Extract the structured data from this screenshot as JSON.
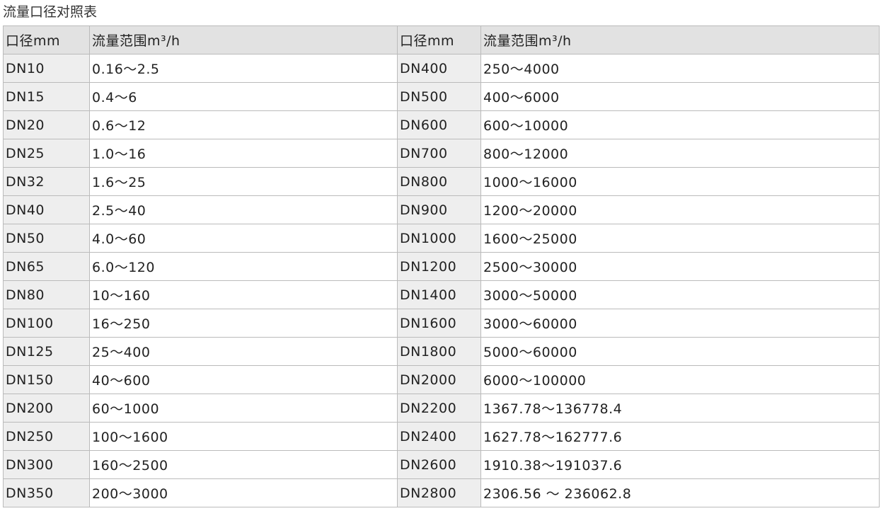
{
  "title": "流量口径对照表",
  "table": {
    "headers": [
      "口径mm",
      "流量范围m³/h",
      "口径mm",
      "流量范围m³/h"
    ],
    "rows": [
      [
        "DN10",
        "0.16～2.5",
        "DN400",
        "250～4000"
      ],
      [
        "DN15",
        "0.4～6",
        "DN500",
        "400～6000"
      ],
      [
        "DN20",
        "0.6～12",
        "DN600",
        "600～10000"
      ],
      [
        "DN25",
        "1.0～16",
        "DN700",
        "800～12000"
      ],
      [
        "DN32",
        "1.6～25",
        "DN800",
        "1000～16000"
      ],
      [
        "DN40",
        "2.5～40",
        "DN900",
        "1200～20000"
      ],
      [
        "DN50",
        "4.0～60",
        "DN1000",
        "1600～25000"
      ],
      [
        "DN65",
        "6.0～120",
        "DN1200",
        "2500～30000"
      ],
      [
        "DN80",
        "10～160",
        "DN1400",
        "3000～50000"
      ],
      [
        "DN100",
        "16～250",
        "DN1600",
        "3000～60000"
      ],
      [
        "DN125",
        "25～400",
        "DN1800",
        "5000～60000"
      ],
      [
        "DN150",
        "40～600",
        "DN2000",
        "6000～100000"
      ],
      [
        "DN200",
        "60～1000",
        "DN2200",
        "1367.78～136778.4"
      ],
      [
        "DN250",
        "100～1600",
        "DN2400",
        "1627.78～162777.6"
      ],
      [
        "DN300",
        "160～2500",
        "DN2600",
        "1910.38～191037.6"
      ],
      [
        "DN350",
        "200～3000",
        "DN2800",
        "2306.56 ～ 236062.8"
      ]
    ]
  }
}
